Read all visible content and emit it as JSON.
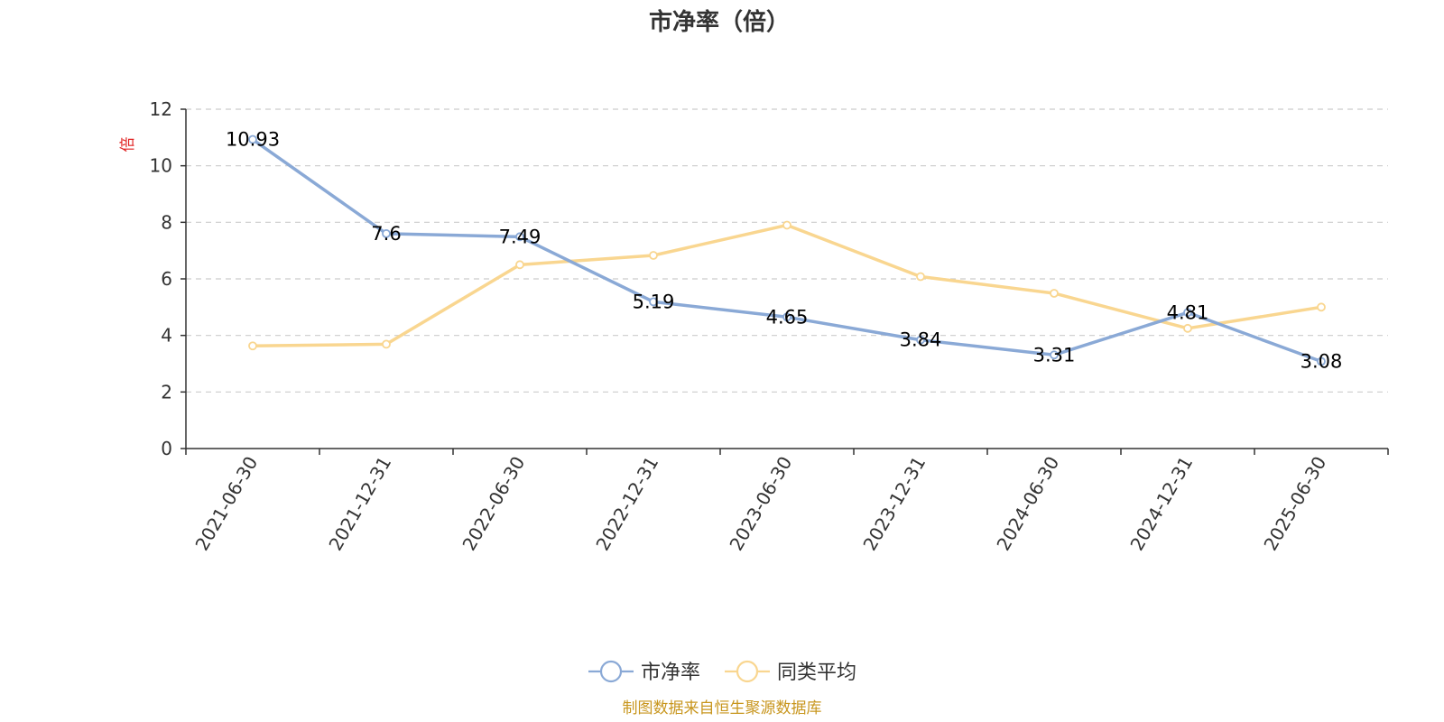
{
  "chart_data": {
    "type": "line",
    "title": "市净率（倍）",
    "ylabel": "倍",
    "ylim": [
      0,
      12
    ],
    "yticks": [
      0,
      2,
      4,
      6,
      8,
      10,
      12
    ],
    "grid": true,
    "legend_position": "bottom-center",
    "categories": [
      "2021-06-30",
      "2021-12-31",
      "2022-06-30",
      "2022-12-31",
      "2023-06-30",
      "2023-12-31",
      "2024-06-30",
      "2024-12-31",
      "2025-06-30"
    ],
    "series": [
      {
        "name": "市净率",
        "color": "#8aa9d6",
        "values": [
          10.93,
          7.6,
          7.49,
          5.19,
          4.65,
          3.84,
          3.31,
          4.81,
          3.08
        ],
        "data_labels": [
          "10.93",
          "7.6",
          "7.49",
          "5.19",
          "4.65",
          "3.84",
          "3.31",
          "4.81",
          "3.08"
        ]
      },
      {
        "name": "同类平均",
        "color": "#f9d690",
        "values": [
          3.63,
          3.69,
          6.5,
          6.83,
          7.9,
          6.08,
          5.49,
          4.25,
          5.0
        ]
      }
    ]
  },
  "footer": {
    "source_text": "制图数据来自恒生聚源数据库",
    "source_color": "#c8961e"
  },
  "colors": {
    "unit_label": "#e02020",
    "grid": "#cccccc",
    "axis": "#333333"
  }
}
